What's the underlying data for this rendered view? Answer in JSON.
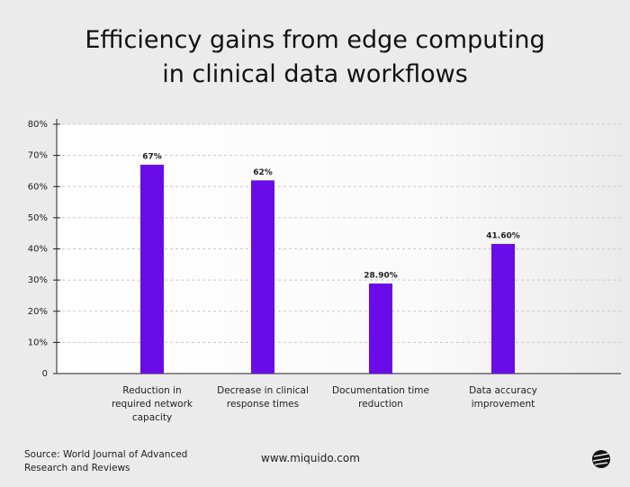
{
  "chart_data": {
    "type": "bar",
    "title": "Efficiency gains from edge computing in clinical data workflows",
    "categories": [
      "Reduction in required network capacity",
      "Decrease in clinical response times",
      "Documentation time reduction",
      "Data accuracy improvement"
    ],
    "values": [
      67,
      62,
      28.9,
      41.6
    ],
    "value_labels": [
      "67%",
      "62%",
      "28.90%",
      "41.60%"
    ],
    "color": "#6a0ce8",
    "ylim": [
      0,
      80
    ],
    "yticks": [
      0,
      {
        "value": 10,
        "label": "10%"
      },
      {
        "value": 20,
        "label": "20%"
      },
      {
        "value": 30,
        "label": "30%"
      },
      {
        "value": 40,
        "label": "40%"
      },
      {
        "value": 50,
        "label": "50%"
      },
      {
        "value": 60,
        "label": "60%"
      },
      {
        "value": 70,
        "label": "70%"
      },
      {
        "value": 80,
        "label": "80%"
      }
    ],
    "grid": true,
    "source": "Source: World Journal of Advanced Research and Reviews",
    "website": "www.miquido.com"
  }
}
